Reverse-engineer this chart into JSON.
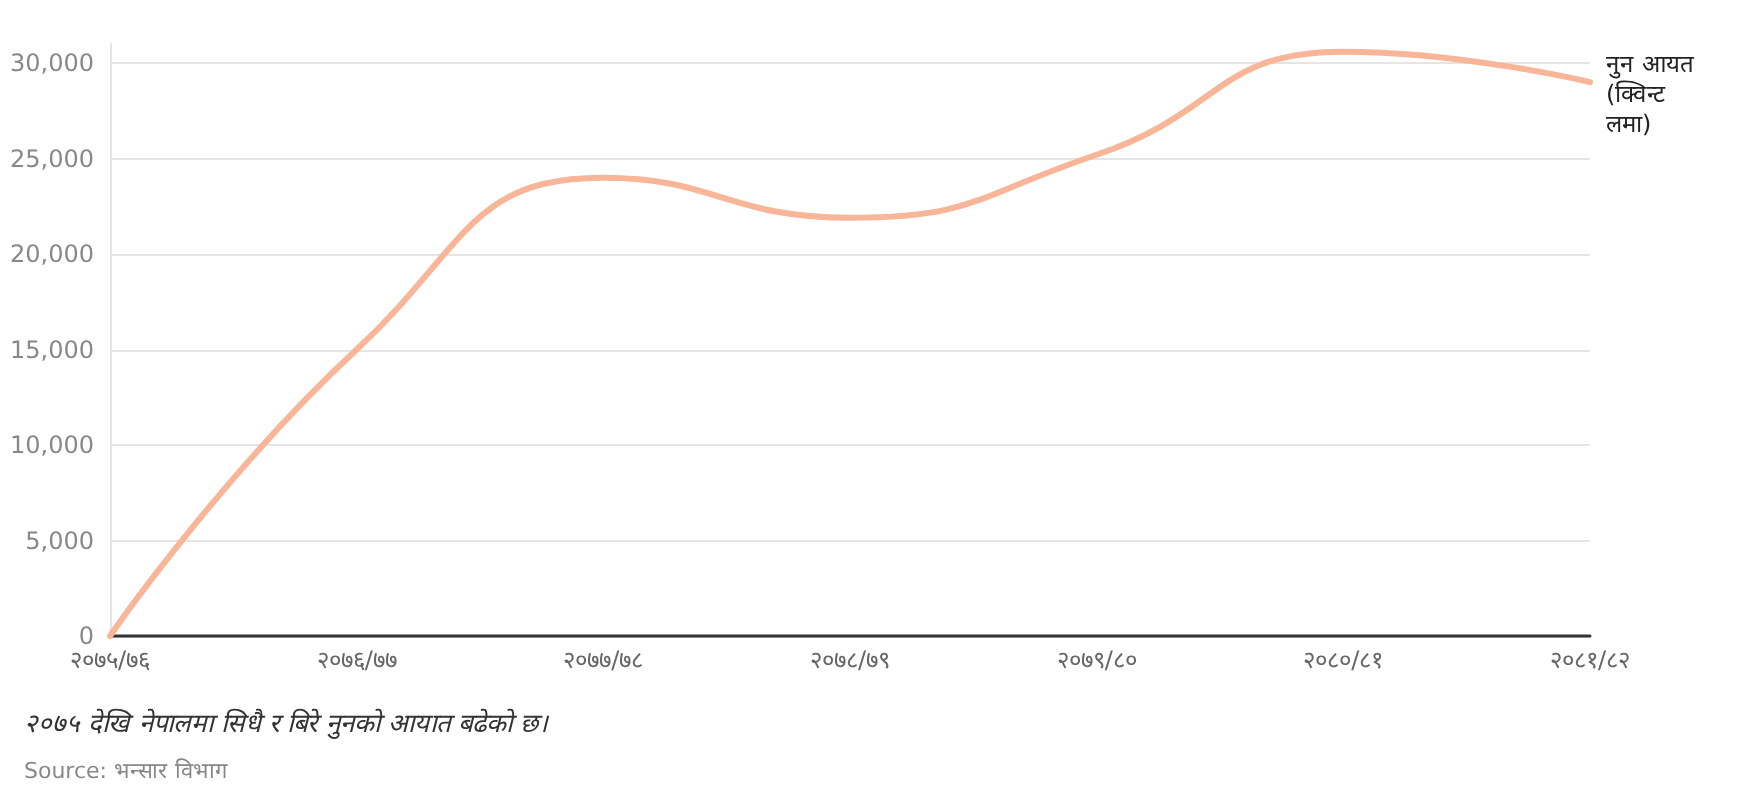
{
  "chart_data": {
    "type": "line",
    "categories": [
      "२०७५/७६",
      "२०७६/७७",
      "२०७७/७८",
      "२०७८/७९",
      "२०७९/८०",
      "२०८०/८१",
      "२०८१/८२"
    ],
    "series": [
      {
        "name": "नुन आयत (क्विन्टलमा)",
        "color": "#f9b597",
        "values": [
          0,
          15000,
          24000,
          21900,
          25200,
          30600,
          29000
        ]
      }
    ],
    "ylim": [
      0,
      31000
    ],
    "yticks": [
      {
        "value": 0,
        "label": "0"
      },
      {
        "value": 5000,
        "label": "5,000"
      },
      {
        "value": 10000,
        "label": "10,000"
      },
      {
        "value": 15000,
        "label": "15,000"
      },
      {
        "value": 20000,
        "label": "20,000"
      },
      {
        "value": 25000,
        "label": "25,000"
      },
      {
        "value": 30000,
        "label": "30,000"
      }
    ],
    "grid": "y",
    "marker": "none",
    "line_style": "solid",
    "annotations": [
      "२०७५ देखि नेपालमा सिधै र बिरे नुनको आयात बढेको छ।",
      "Source: भन्सार विभाग"
    ]
  }
}
